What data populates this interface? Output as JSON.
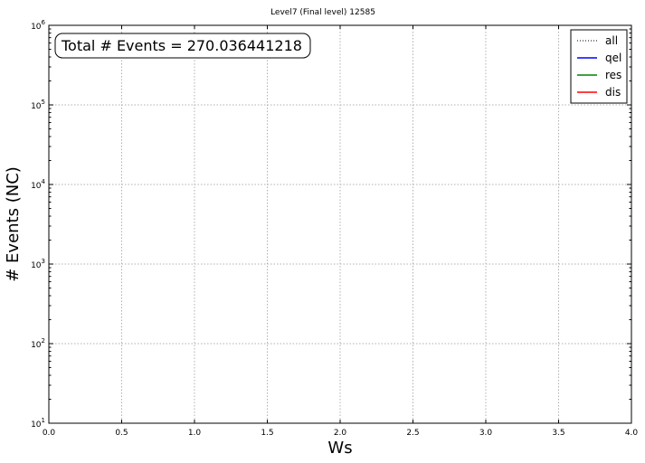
{
  "chart_data": {
    "type": "line",
    "title": "Level7 (Final level) 12585",
    "xlabel": "Ws",
    "ylabel": "# Events (NC)",
    "xlim": [
      0.0,
      4.0
    ],
    "ylim": [
      10,
      1000000
    ],
    "yscale": "log",
    "grid": true,
    "legend_position": "top-right",
    "x_ticks": [
      "0.0",
      "0.5",
      "1.0",
      "1.5",
      "2.0",
      "2.5",
      "3.0",
      "3.5",
      "4.0"
    ],
    "y_ticks": [
      {
        "base": "10",
        "exp": "1"
      },
      {
        "base": "10",
        "exp": "2"
      },
      {
        "base": "10",
        "exp": "3"
      },
      {
        "base": "10",
        "exp": "4"
      },
      {
        "base": "10",
        "exp": "5"
      },
      {
        "base": "10",
        "exp": "6"
      }
    ],
    "series": [
      {
        "name": "all",
        "color": "#000000",
        "style": "dotted",
        "x": [],
        "y": []
      },
      {
        "name": "qel",
        "color": "#0000ff",
        "style": "solid",
        "x": [],
        "y": []
      },
      {
        "name": "res",
        "color": "#008000",
        "style": "solid",
        "x": [],
        "y": []
      },
      {
        "name": "dis",
        "color": "#ff0000",
        "style": "solid",
        "x": [],
        "y": []
      }
    ],
    "annotation": "Total # Events = 270.036441218"
  }
}
